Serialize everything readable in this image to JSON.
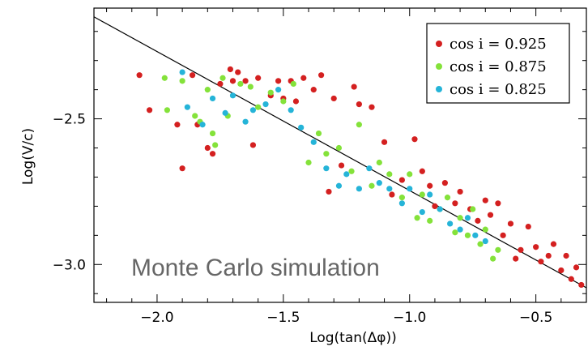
{
  "chart_data": {
    "type": "scatter",
    "xlabel": "Log(tan(Δφ))",
    "ylabel": "Log(V/c)",
    "xlim": [
      -2.25,
      -0.3
    ],
    "ylim": [
      -3.13,
      -2.12
    ],
    "xticks": [
      -2.0,
      -1.5,
      -1.0,
      -0.5
    ],
    "xtick_labels": [
      "−2.0",
      "−1.5",
      "−1.0",
      "−0.5"
    ],
    "yticks": [
      -2.5,
      -3.0
    ],
    "ytick_labels": [
      "−2.5",
      "−3.0"
    ],
    "legend_position": "top-right",
    "annotation": "Monte Carlo simulation",
    "fit_line": {
      "x": [
        -2.25,
        -0.3
      ],
      "y": [
        -2.15,
        -3.08
      ]
    },
    "series": [
      {
        "name": "cos i = 0.925",
        "color": "#d42020",
        "points": [
          [
            -2.07,
            -2.35
          ],
          [
            -2.03,
            -2.47
          ],
          [
            -1.92,
            -2.52
          ],
          [
            -1.9,
            -2.67
          ],
          [
            -1.86,
            -2.35
          ],
          [
            -1.84,
            -2.52
          ],
          [
            -1.8,
            -2.6
          ],
          [
            -1.78,
            -2.62
          ],
          [
            -1.75,
            -2.38
          ],
          [
            -1.71,
            -2.33
          ],
          [
            -1.7,
            -2.37
          ],
          [
            -1.68,
            -2.34
          ],
          [
            -1.65,
            -2.37
          ],
          [
            -1.62,
            -2.59
          ],
          [
            -1.6,
            -2.36
          ],
          [
            -1.55,
            -2.42
          ],
          [
            -1.52,
            -2.37
          ],
          [
            -1.5,
            -2.43
          ],
          [
            -1.47,
            -2.37
          ],
          [
            -1.45,
            -2.44
          ],
          [
            -1.42,
            -2.36
          ],
          [
            -1.38,
            -2.4
          ],
          [
            -1.35,
            -2.35
          ],
          [
            -1.32,
            -2.75
          ],
          [
            -1.3,
            -2.43
          ],
          [
            -1.27,
            -2.66
          ],
          [
            -1.22,
            -2.39
          ],
          [
            -1.2,
            -2.45
          ],
          [
            -1.15,
            -2.46
          ],
          [
            -1.1,
            -2.58
          ],
          [
            -1.07,
            -2.76
          ],
          [
            -1.03,
            -2.71
          ],
          [
            -0.98,
            -2.57
          ],
          [
            -0.95,
            -2.68
          ],
          [
            -0.92,
            -2.73
          ],
          [
            -0.9,
            -2.8
          ],
          [
            -0.86,
            -2.72
          ],
          [
            -0.82,
            -2.79
          ],
          [
            -0.8,
            -2.75
          ],
          [
            -0.76,
            -2.81
          ],
          [
            -0.73,
            -2.85
          ],
          [
            -0.7,
            -2.78
          ],
          [
            -0.68,
            -2.83
          ],
          [
            -0.65,
            -2.79
          ],
          [
            -0.63,
            -2.9
          ],
          [
            -0.6,
            -2.86
          ],
          [
            -0.58,
            -2.98
          ],
          [
            -0.56,
            -2.95
          ],
          [
            -0.53,
            -2.87
          ],
          [
            -0.5,
            -2.94
          ],
          [
            -0.48,
            -2.99
          ],
          [
            -0.45,
            -2.97
          ],
          [
            -0.43,
            -2.93
          ],
          [
            -0.4,
            -3.02
          ],
          [
            -0.38,
            -2.97
          ],
          [
            -0.36,
            -3.05
          ],
          [
            -0.34,
            -3.01
          ],
          [
            -0.32,
            -3.07
          ]
        ]
      },
      {
        "name": "cos i = 0.875",
        "color": "#84e23a",
        "points": [
          [
            -1.97,
            -2.36
          ],
          [
            -1.96,
            -2.47
          ],
          [
            -1.9,
            -2.37
          ],
          [
            -1.85,
            -2.49
          ],
          [
            -1.83,
            -2.51
          ],
          [
            -1.8,
            -2.4
          ],
          [
            -1.78,
            -2.55
          ],
          [
            -1.77,
            -2.59
          ],
          [
            -1.74,
            -2.36
          ],
          [
            -1.72,
            -2.49
          ],
          [
            -1.67,
            -2.38
          ],
          [
            -1.63,
            -2.39
          ],
          [
            -1.6,
            -2.46
          ],
          [
            -1.55,
            -2.41
          ],
          [
            -1.5,
            -2.44
          ],
          [
            -1.46,
            -2.38
          ],
          [
            -1.4,
            -2.65
          ],
          [
            -1.36,
            -2.55
          ],
          [
            -1.33,
            -2.62
          ],
          [
            -1.28,
            -2.6
          ],
          [
            -1.23,
            -2.68
          ],
          [
            -1.2,
            -2.52
          ],
          [
            -1.15,
            -2.73
          ],
          [
            -1.12,
            -2.65
          ],
          [
            -1.08,
            -2.69
          ],
          [
            -1.03,
            -2.77
          ],
          [
            -1.0,
            -2.69
          ],
          [
            -0.97,
            -2.84
          ],
          [
            -0.95,
            -2.76
          ],
          [
            -0.92,
            -2.85
          ],
          [
            -0.88,
            -2.81
          ],
          [
            -0.85,
            -2.77
          ],
          [
            -0.82,
            -2.89
          ],
          [
            -0.8,
            -2.84
          ],
          [
            -0.77,
            -2.9
          ],
          [
            -0.75,
            -2.81
          ],
          [
            -0.72,
            -2.93
          ],
          [
            -0.7,
            -2.88
          ],
          [
            -0.67,
            -2.98
          ],
          [
            -0.65,
            -2.95
          ]
        ]
      },
      {
        "name": "cos i = 0.825",
        "color": "#25b4d8",
        "points": [
          [
            -1.9,
            -2.34
          ],
          [
            -1.88,
            -2.46
          ],
          [
            -1.82,
            -2.52
          ],
          [
            -1.78,
            -2.43
          ],
          [
            -1.73,
            -2.48
          ],
          [
            -1.7,
            -2.42
          ],
          [
            -1.65,
            -2.51
          ],
          [
            -1.62,
            -2.47
          ],
          [
            -1.57,
            -2.45
          ],
          [
            -1.52,
            -2.4
          ],
          [
            -1.47,
            -2.47
          ],
          [
            -1.43,
            -2.53
          ],
          [
            -1.38,
            -2.58
          ],
          [
            -1.33,
            -2.67
          ],
          [
            -1.28,
            -2.73
          ],
          [
            -1.25,
            -2.69
          ],
          [
            -1.2,
            -2.74
          ],
          [
            -1.16,
            -2.67
          ],
          [
            -1.12,
            -2.72
          ],
          [
            -1.08,
            -2.74
          ],
          [
            -1.03,
            -2.79
          ],
          [
            -1.0,
            -2.74
          ],
          [
            -0.95,
            -2.82
          ],
          [
            -0.92,
            -2.76
          ],
          [
            -0.88,
            -2.81
          ],
          [
            -0.84,
            -2.86
          ],
          [
            -0.8,
            -2.88
          ],
          [
            -0.77,
            -2.84
          ],
          [
            -0.74,
            -2.9
          ],
          [
            -0.7,
            -2.92
          ]
        ]
      }
    ]
  }
}
